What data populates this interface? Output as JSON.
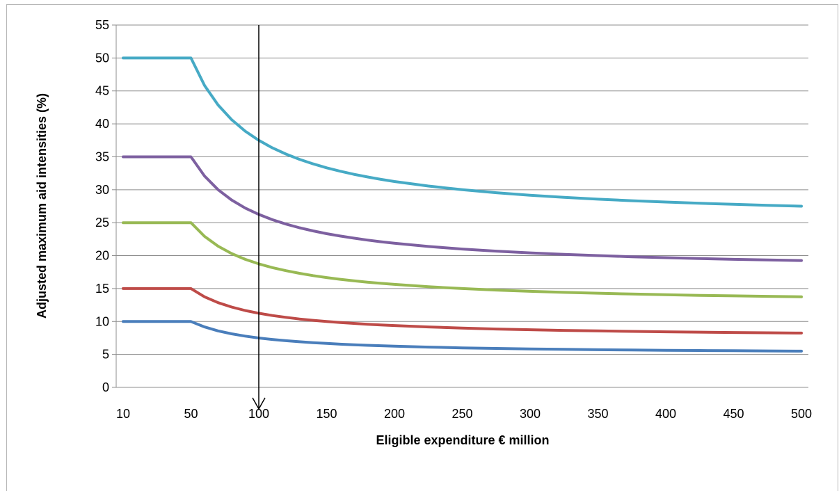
{
  "chart_data": {
    "type": "line",
    "title": "",
    "xlabel": "Eligible expenditure € million",
    "ylabel": "Adjusted maximum aid intensities (%)",
    "x_tick_labels": [
      "10",
      "50",
      "100",
      "150",
      "200",
      "250",
      "300",
      "350",
      "400",
      "450",
      "500"
    ],
    "y_tick_labels": [
      "0",
      "5",
      "10",
      "15",
      "20",
      "25",
      "30",
      "35",
      "40",
      "45",
      "50",
      "55"
    ],
    "ylim": [
      0,
      55
    ],
    "grid": true,
    "legend": "none",
    "x": [
      10,
      50,
      60,
      70,
      80,
      90,
      100,
      110,
      120,
      130,
      140,
      150,
      160,
      170,
      180,
      190,
      200,
      225,
      250,
      275,
      300,
      325,
      350,
      375,
      400,
      425,
      450,
      475,
      500
    ],
    "series": [
      {
        "color": "#4a7ebb",
        "values": [
          10,
          10,
          9.17,
          8.57,
          8.13,
          7.78,
          7.5,
          7.27,
          7.08,
          6.92,
          6.79,
          6.67,
          6.56,
          6.47,
          6.39,
          6.32,
          6.25,
          6.11,
          6.0,
          5.91,
          5.83,
          5.77,
          5.71,
          5.67,
          5.63,
          5.59,
          5.56,
          5.53,
          5.5
        ]
      },
      {
        "color": "#be4b48",
        "values": [
          15,
          15,
          13.75,
          12.86,
          12.19,
          11.67,
          11.25,
          10.91,
          10.63,
          10.38,
          10.18,
          10.0,
          9.84,
          9.71,
          9.58,
          9.47,
          9.38,
          9.17,
          9.0,
          8.86,
          8.75,
          8.65,
          8.57,
          8.5,
          8.44,
          8.38,
          8.33,
          8.29,
          8.25
        ]
      },
      {
        "color": "#98b954",
        "values": [
          25,
          25,
          22.92,
          21.43,
          20.31,
          19.44,
          18.75,
          18.18,
          17.71,
          17.31,
          16.96,
          16.67,
          16.41,
          16.18,
          15.97,
          15.79,
          15.63,
          15.28,
          15.0,
          14.77,
          14.58,
          14.42,
          14.29,
          14.17,
          14.06,
          13.97,
          13.89,
          13.82,
          13.75
        ]
      },
      {
        "color": "#7d60a0",
        "values": [
          35,
          35,
          32.08,
          30.0,
          28.44,
          27.22,
          26.25,
          25.45,
          24.79,
          24.23,
          23.75,
          23.33,
          22.97,
          22.65,
          22.36,
          22.11,
          21.88,
          21.39,
          21.0,
          20.68,
          20.42,
          20.19,
          20.0,
          19.83,
          19.69,
          19.56,
          19.44,
          19.34,
          19.25
        ]
      },
      {
        "color": "#46aac5",
        "values": [
          50,
          50,
          45.83,
          42.86,
          40.63,
          38.89,
          37.5,
          36.36,
          35.42,
          34.62,
          33.93,
          33.33,
          32.81,
          32.35,
          31.94,
          31.58,
          31.25,
          30.56,
          30.0,
          29.55,
          29.17,
          28.85,
          28.57,
          28.33,
          28.13,
          27.94,
          27.78,
          27.63,
          27.5
        ]
      }
    ],
    "annotation": {
      "type": "arrow",
      "x": 100,
      "from_y": 55,
      "to_y": 0
    }
  }
}
